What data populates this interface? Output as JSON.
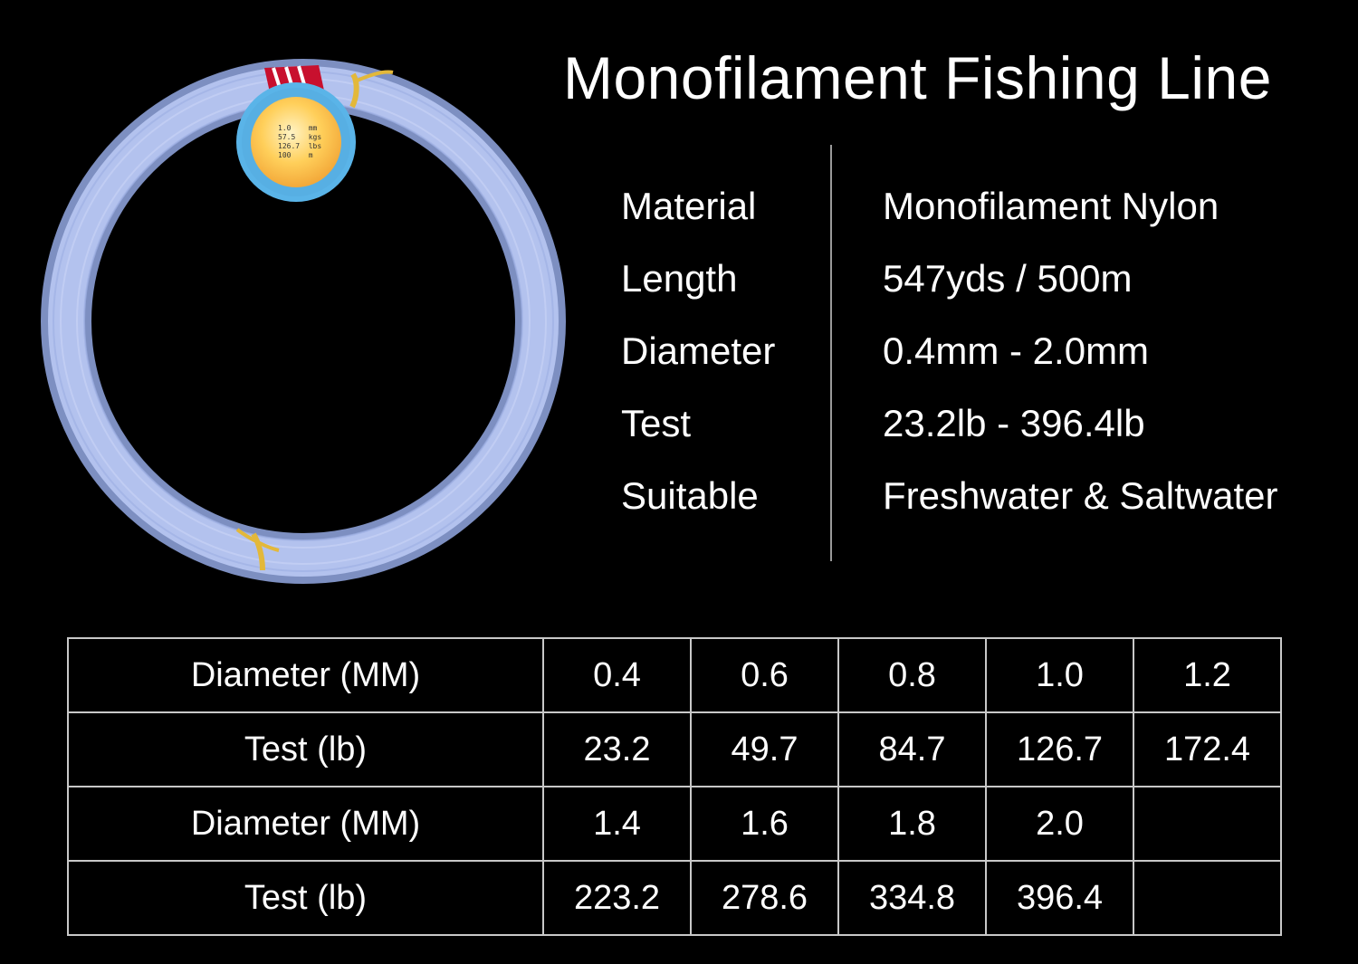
{
  "title": "Monofilament Fishing Line",
  "label_tag": {
    "lines": [
      "1.0    mm",
      "57.5   kgs",
      "126.7  lbs",
      "100    m"
    ]
  },
  "specs": [
    {
      "label": "Material",
      "value": "Monofilament Nylon"
    },
    {
      "label": "Length",
      "value": "547yds / 500m"
    },
    {
      "label": "Diameter",
      "value": "0.4mm - 2.0mm"
    },
    {
      "label": "Test",
      "value": "23.2lb - 396.4lb"
    },
    {
      "label": "Suitable",
      "value": "Freshwater & Saltwater"
    }
  ],
  "table": {
    "rows": [
      {
        "header": "Diameter (MM)",
        "cells": [
          "0.4",
          "0.6",
          "0.8",
          "1.0",
          "1.2"
        ]
      },
      {
        "header": "Test (lb)",
        "cells": [
          "23.2",
          "49.7",
          "84.7",
          "126.7",
          "172.4"
        ]
      },
      {
        "header": "Diameter (MM)",
        "cells": [
          "1.4",
          "1.6",
          "1.8",
          "2.0",
          ""
        ]
      },
      {
        "header": "Test (lb)",
        "cells": [
          "223.2",
          "278.6",
          "334.8",
          "396.4",
          ""
        ]
      }
    ]
  },
  "colors": {
    "background": "#000000",
    "line": "#aabcec",
    "label_ring": "#5ab4e8",
    "label_center": "#ffc64a",
    "tie": "#e3b83a"
  }
}
